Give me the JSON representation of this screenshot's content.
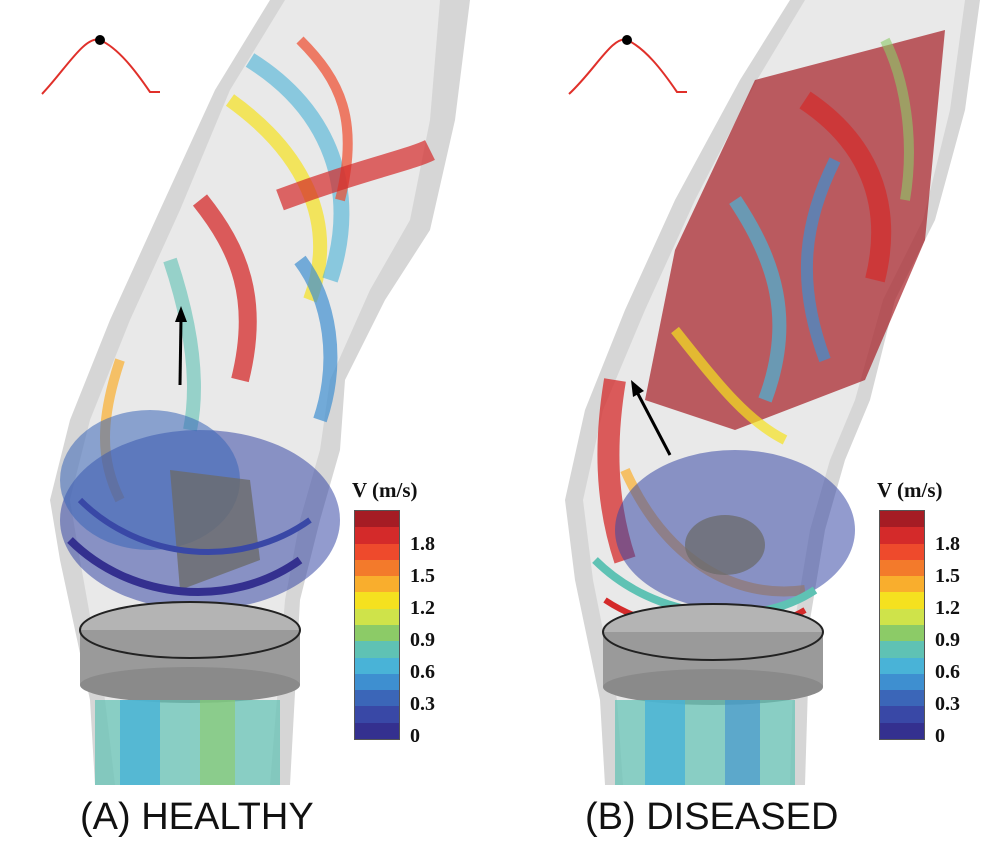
{
  "panels": [
    {
      "caption": "(A) HEALTHY",
      "legend": {
        "title": "V (m/s)",
        "ticks": [
          "1.8",
          "1.5",
          "1.2",
          "0.9",
          "0.6",
          "0.3",
          "0"
        ]
      }
    },
    {
      "caption": "(B) DISEASED",
      "legend": {
        "title": "V (m/s)",
        "ticks": [
          "1.8",
          "1.5",
          "1.2",
          "0.9",
          "0.6",
          "0.3",
          "0"
        ]
      }
    }
  ],
  "colorscale": [
    "#a51c24",
    "#d42a2a",
    "#ee4a2c",
    "#f37a2b",
    "#f9ae2d",
    "#f5e11f",
    "#cfe34a",
    "#8ccb67",
    "#5fc2b4",
    "#49b3d7",
    "#3e8fd0",
    "#3b66b8",
    "#3948a6",
    "#34308f"
  ]
}
